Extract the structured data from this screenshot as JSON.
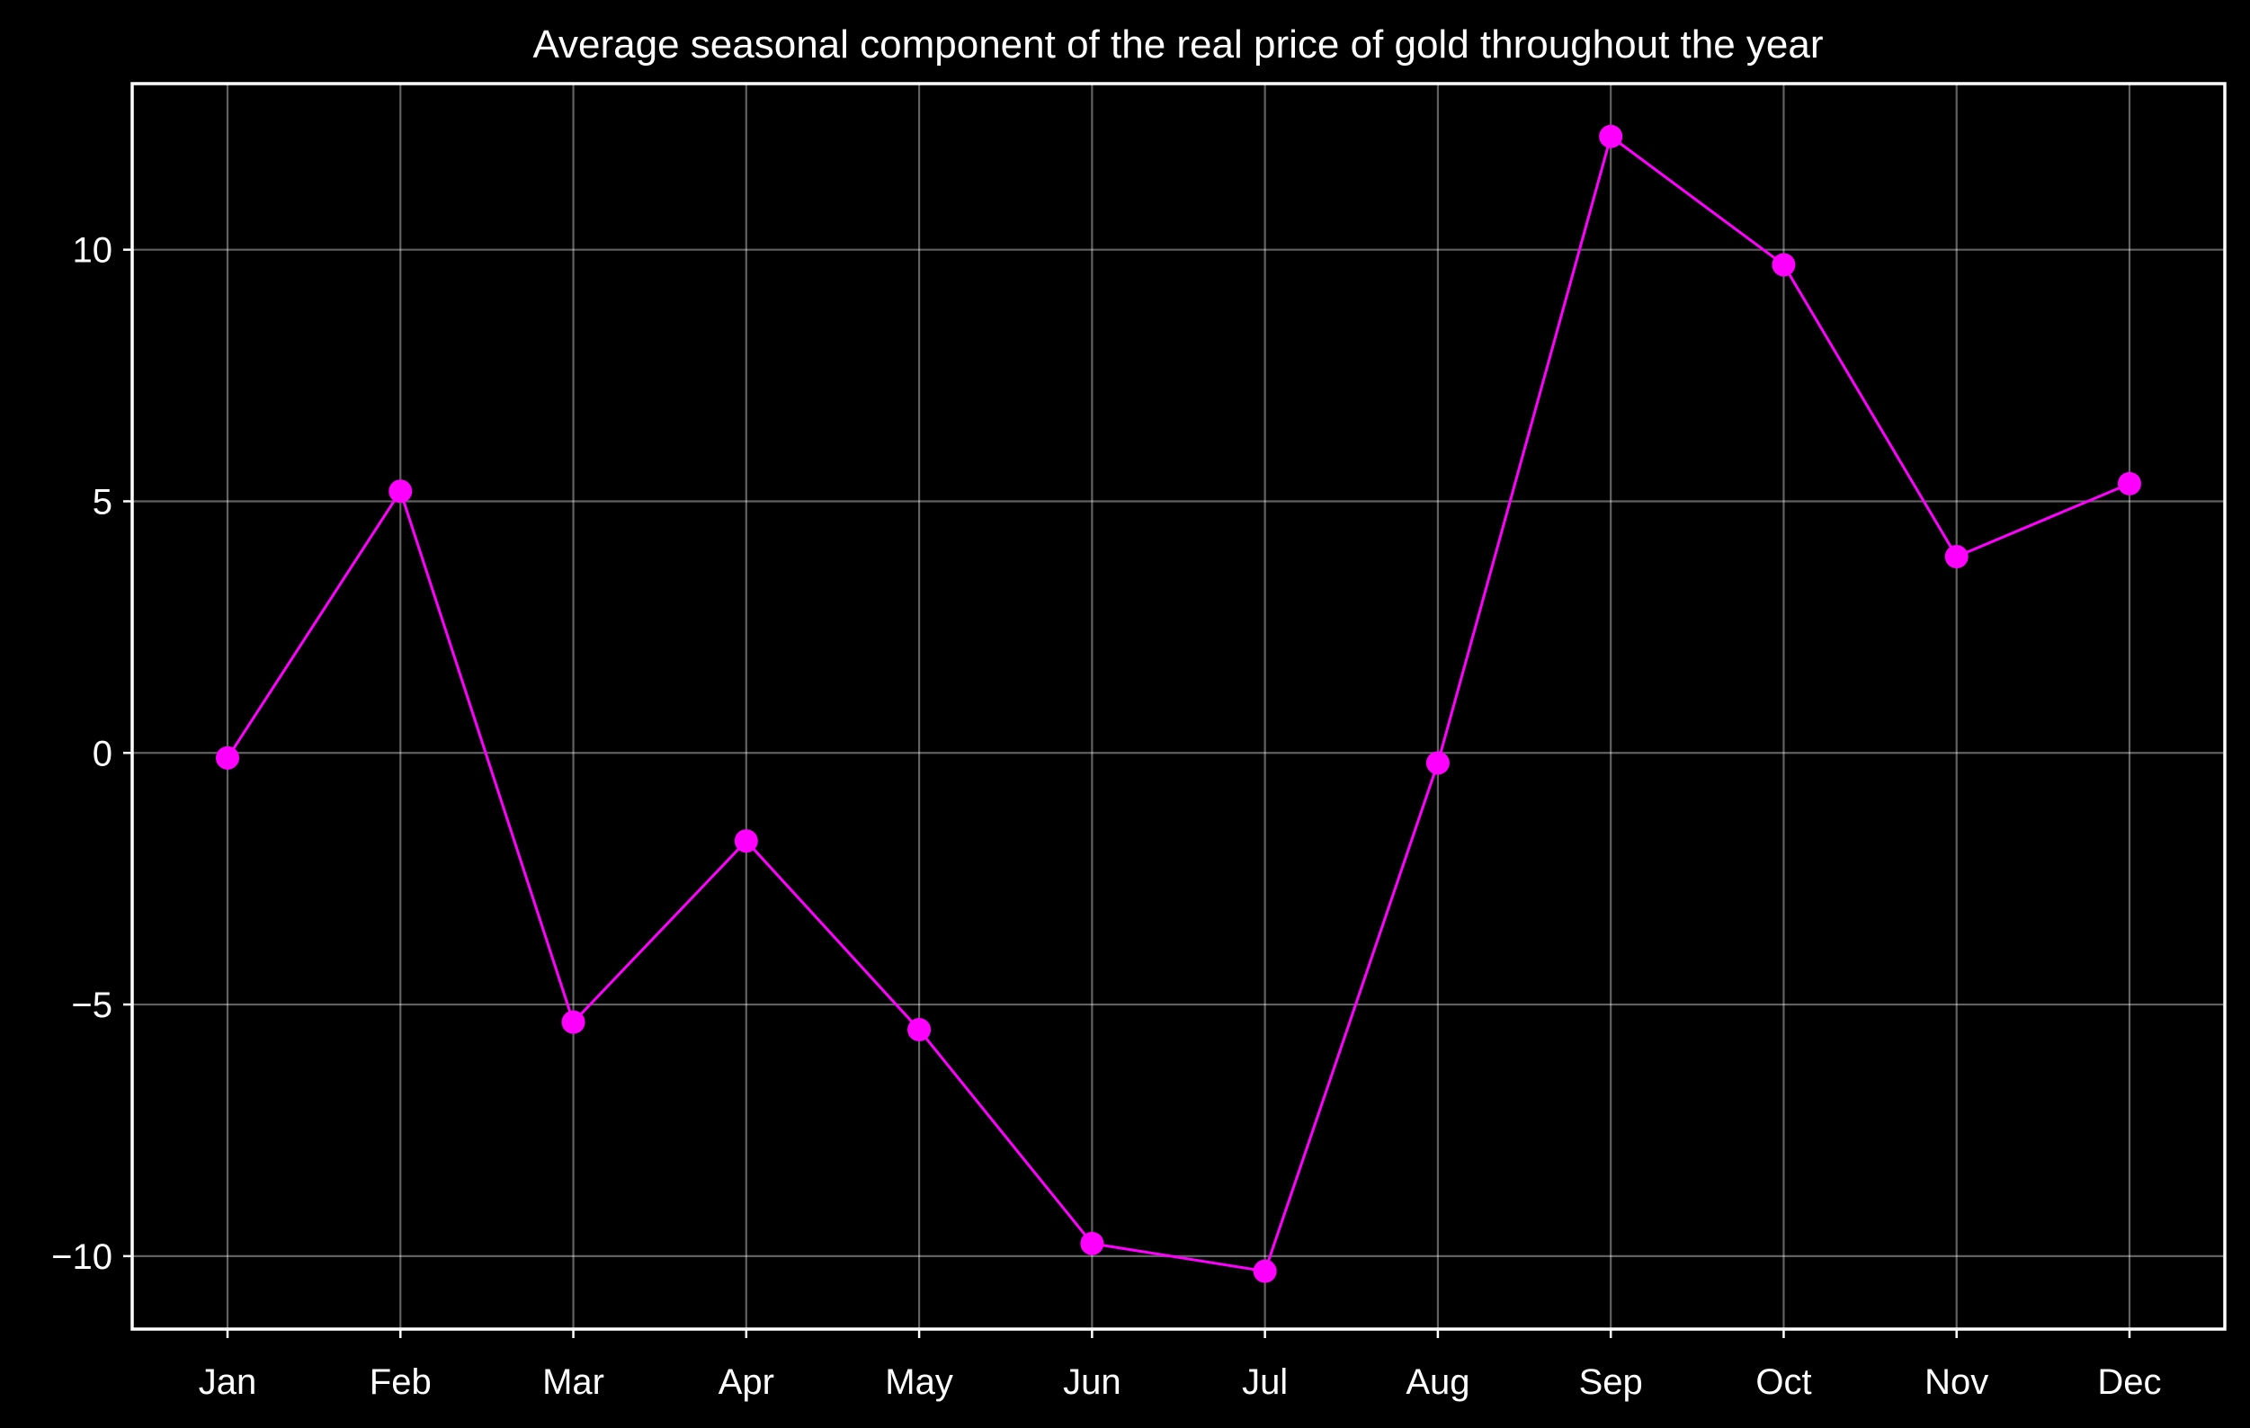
{
  "chart_data": {
    "type": "line",
    "title": "Average seasonal component of the real price of gold throughout the year",
    "xlabel": "",
    "ylabel": "",
    "categories": [
      "Jan",
      "Feb",
      "Mar",
      "Apr",
      "May",
      "Jun",
      "Jul",
      "Aug",
      "Sep",
      "Oct",
      "Nov",
      "Dec"
    ],
    "series": [
      {
        "values": [
          -0.1,
          5.2,
          -5.35,
          -1.75,
          -5.5,
          -9.75,
          -10.3,
          -0.2,
          12.25,
          9.7,
          3.9,
          5.35
        ],
        "color": "#ff00ff",
        "marker": "circle"
      }
    ],
    "yticks": [
      -10,
      -5,
      0,
      5,
      10
    ],
    "ytick_labels": [
      "−10",
      "−5",
      "0",
      "5",
      "10"
    ],
    "ylim": [
      -11.45,
      13.3
    ],
    "grid": true,
    "background": "#000000",
    "foreground": "#ffffff",
    "legend": "none"
  }
}
